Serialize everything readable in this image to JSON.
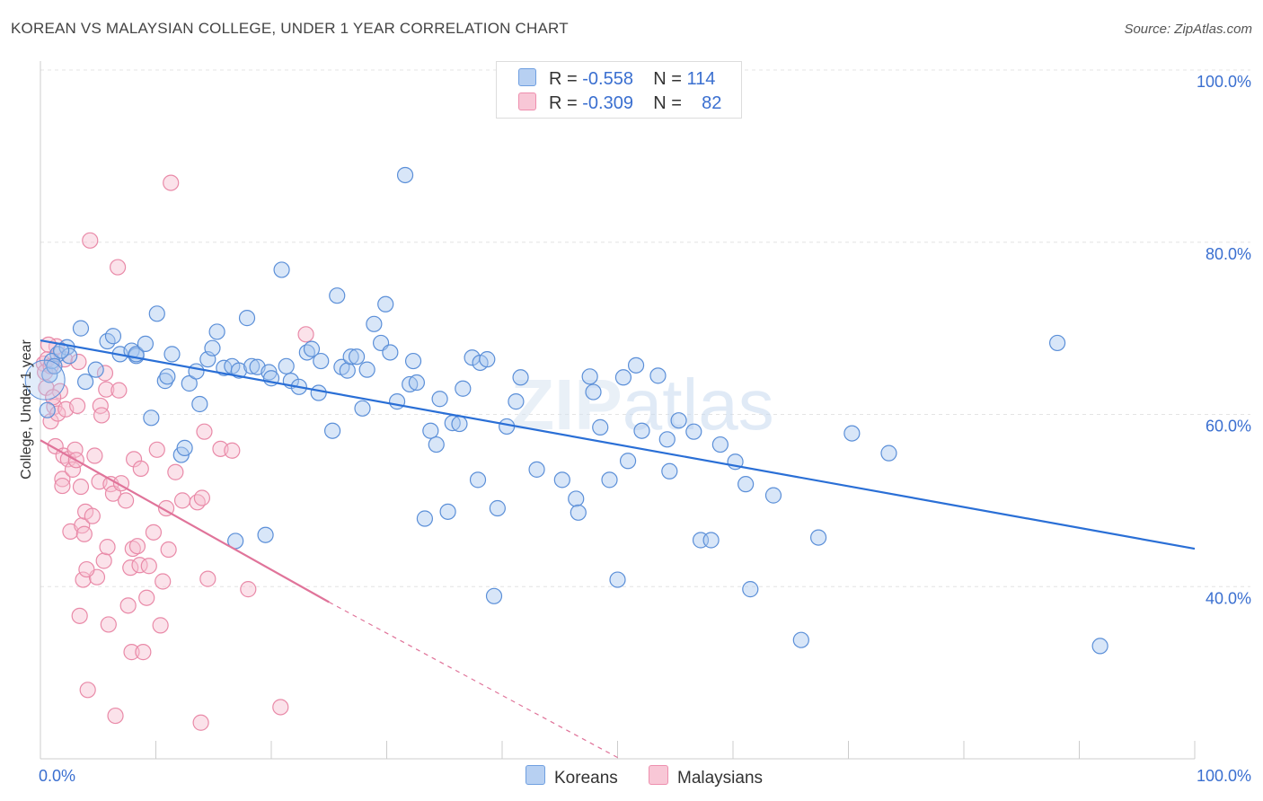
{
  "title": "KOREAN VS MALAYSIAN COLLEGE, UNDER 1 YEAR CORRELATION CHART",
  "source": "Source: ZipAtlas.com",
  "watermark": "ZIPatlas",
  "legend": {
    "koreans": {
      "r_label": "R =",
      "r_value": "-0.558",
      "n_label": "N =",
      "n_value": "114"
    },
    "malaysians": {
      "r_label": "R =",
      "r_value": "-0.309",
      "n_label": "N =",
      "n_value": "82"
    }
  },
  "bottom_legend": {
    "koreans": "Koreans",
    "malaysians": "Malaysians"
  },
  "colors": {
    "blue_fill": "#a9c8f0",
    "blue_stroke": "#5b8fd8",
    "blue_line": "#2a6fd6",
    "pink_fill": "#f6bed0",
    "pink_stroke": "#e98aa8",
    "pink_line": "#e0749a",
    "axis_label": "#3a6fd0"
  },
  "chart_data": {
    "type": "scatter",
    "title": "KOREAN VS MALAYSIAN COLLEGE, UNDER 1 YEAR CORRELATION CHART",
    "xlabel": "",
    "ylabel": "College, Under 1 year",
    "xlim": [
      0,
      100
    ],
    "ylim": [
      20,
      100
    ],
    "x_tick_labels": {
      "left": "0.0%",
      "right": "100.0%"
    },
    "y_ticks": [
      {
        "value": 100,
        "label": "100.0%"
      },
      {
        "value": 80,
        "label": "80.0%"
      },
      {
        "value": 60,
        "label": "60.0%"
      },
      {
        "value": 40,
        "label": "40.0%"
      }
    ],
    "series": [
      {
        "name": "Koreans",
        "r": -0.558,
        "n": 114,
        "trend": {
          "x0": 0,
          "y0": 68.6,
          "x1": 100,
          "y1": 44.4
        },
        "points": [
          [
            1.5,
            67.0
          ],
          [
            2.3,
            67.8
          ],
          [
            2.5,
            66.8
          ],
          [
            3.5,
            70.0
          ],
          [
            3.9,
            63.8
          ],
          [
            4.8,
            65.2
          ],
          [
            5.8,
            68.5
          ],
          [
            6.3,
            69.1
          ],
          [
            6.9,
            67.0
          ],
          [
            7.9,
            67.4
          ],
          [
            8.3,
            66.8
          ],
          [
            8.3,
            67.0
          ],
          [
            9.1,
            68.2
          ],
          [
            9.6,
            59.6
          ],
          [
            10.1,
            71.7
          ],
          [
            10.8,
            63.9
          ],
          [
            11.0,
            64.4
          ],
          [
            11.4,
            67.0
          ],
          [
            12.2,
            55.3
          ],
          [
            12.5,
            56.1
          ],
          [
            12.9,
            63.6
          ],
          [
            13.5,
            65.0
          ],
          [
            13.8,
            61.2
          ],
          [
            14.5,
            66.4
          ],
          [
            14.9,
            67.7
          ],
          [
            15.3,
            69.6
          ],
          [
            15.9,
            65.4
          ],
          [
            16.6,
            65.6
          ],
          [
            16.9,
            45.3
          ],
          [
            17.2,
            65.1
          ],
          [
            17.9,
            71.2
          ],
          [
            18.3,
            65.6
          ],
          [
            18.8,
            65.5
          ],
          [
            19.5,
            46.0
          ],
          [
            19.8,
            64.9
          ],
          [
            20.0,
            64.2
          ],
          [
            20.9,
            76.8
          ],
          [
            21.3,
            65.6
          ],
          [
            21.7,
            63.9
          ],
          [
            22.4,
            63.2
          ],
          [
            23.1,
            67.2
          ],
          [
            23.5,
            67.6
          ],
          [
            24.1,
            62.5
          ],
          [
            24.3,
            66.2
          ],
          [
            25.3,
            58.1
          ],
          [
            25.7,
            73.8
          ],
          [
            26.1,
            65.5
          ],
          [
            26.6,
            65.1
          ],
          [
            26.9,
            66.7
          ],
          [
            27.4,
            66.7
          ],
          [
            27.9,
            60.7
          ],
          [
            28.3,
            65.2
          ],
          [
            28.9,
            70.5
          ],
          [
            29.5,
            68.3
          ],
          [
            29.9,
            72.8
          ],
          [
            30.3,
            67.2
          ],
          [
            30.9,
            61.5
          ],
          [
            31.6,
            87.8
          ],
          [
            32.0,
            63.5
          ],
          [
            32.3,
            66.2
          ],
          [
            32.6,
            63.7
          ],
          [
            33.3,
            47.9
          ],
          [
            33.8,
            58.1
          ],
          [
            34.3,
            56.5
          ],
          [
            34.6,
            61.8
          ],
          [
            35.3,
            48.7
          ],
          [
            35.7,
            59.0
          ],
          [
            36.3,
            58.9
          ],
          [
            36.6,
            63.0
          ],
          [
            37.4,
            66.6
          ],
          [
            38.1,
            66.0
          ],
          [
            37.9,
            52.4
          ],
          [
            38.7,
            66.4
          ],
          [
            39.3,
            38.9
          ],
          [
            39.6,
            49.1
          ],
          [
            40.4,
            58.6
          ],
          [
            41.2,
            61.5
          ],
          [
            41.6,
            64.3
          ],
          [
            43.0,
            53.6
          ],
          [
            45.2,
            52.4
          ],
          [
            46.4,
            50.2
          ],
          [
            46.6,
            48.6
          ],
          [
            47.6,
            64.4
          ],
          [
            47.9,
            62.6
          ],
          [
            48.5,
            58.5
          ],
          [
            49.3,
            52.4
          ],
          [
            50.0,
            40.8
          ],
          [
            50.5,
            64.3
          ],
          [
            50.9,
            54.6
          ],
          [
            51.6,
            65.7
          ],
          [
            52.1,
            58.1
          ],
          [
            53.5,
            64.5
          ],
          [
            54.3,
            57.1
          ],
          [
            54.5,
            53.4
          ],
          [
            55.3,
            59.3
          ],
          [
            56.6,
            58.0
          ],
          [
            57.2,
            45.4
          ],
          [
            58.1,
            45.4
          ],
          [
            58.9,
            56.5
          ],
          [
            60.2,
            54.5
          ],
          [
            61.1,
            51.9
          ],
          [
            61.5,
            39.7
          ],
          [
            63.5,
            50.6
          ],
          [
            65.9,
            33.8
          ],
          [
            67.4,
            45.7
          ],
          [
            70.3,
            57.8
          ],
          [
            73.5,
            55.5
          ],
          [
            88.1,
            68.3
          ],
          [
            91.8,
            33.1
          ],
          [
            0.6,
            60.5
          ],
          [
            0.8,
            64.6
          ],
          [
            1.0,
            66.2
          ],
          [
            1.2,
            65.6
          ],
          [
            1.8,
            67.4
          ]
        ]
      },
      {
        "name": "Malaysians",
        "r": -0.309,
        "n": 82,
        "trend": {
          "x0": 0,
          "y0": 57.0,
          "x1": 25.0,
          "y1": 38.2
        },
        "trend_dashed": {
          "x0": 25.0,
          "y0": 38.2,
          "x1": 50.2,
          "y1": 20.0
        },
        "points": [
          [
            0.3,
            65.9
          ],
          [
            0.4,
            64.9
          ],
          [
            0.6,
            66.4
          ],
          [
            0.9,
            65.6
          ],
          [
            0.9,
            59.2
          ],
          [
            1.2,
            60.9
          ],
          [
            1.3,
            56.3
          ],
          [
            1.4,
            67.9
          ],
          [
            1.5,
            60.1
          ],
          [
            1.7,
            62.7
          ],
          [
            1.9,
            52.5
          ],
          [
            1.9,
            51.7
          ],
          [
            2.0,
            55.2
          ],
          [
            2.2,
            60.6
          ],
          [
            2.4,
            54.8
          ],
          [
            2.6,
            46.4
          ],
          [
            2.8,
            53.6
          ],
          [
            3.0,
            55.9
          ],
          [
            3.1,
            54.7
          ],
          [
            3.2,
            61.0
          ],
          [
            3.4,
            36.6
          ],
          [
            3.5,
            51.6
          ],
          [
            3.6,
            47.1
          ],
          [
            3.7,
            40.8
          ],
          [
            3.8,
            46.1
          ],
          [
            3.9,
            48.7
          ],
          [
            4.1,
            28.0
          ],
          [
            4.3,
            80.2
          ],
          [
            4.5,
            48.2
          ],
          [
            4.7,
            55.2
          ],
          [
            4.9,
            41.1
          ],
          [
            5.1,
            52.2
          ],
          [
            5.2,
            61.0
          ],
          [
            5.3,
            59.9
          ],
          [
            5.5,
            43.0
          ],
          [
            5.6,
            64.8
          ],
          [
            5.7,
            62.9
          ],
          [
            5.8,
            44.6
          ],
          [
            5.9,
            35.6
          ],
          [
            6.1,
            51.9
          ],
          [
            6.3,
            50.8
          ],
          [
            6.5,
            25.0
          ],
          [
            6.7,
            77.1
          ],
          [
            6.8,
            62.8
          ],
          [
            7.0,
            52.0
          ],
          [
            7.4,
            50.0
          ],
          [
            7.6,
            37.8
          ],
          [
            7.8,
            42.2
          ],
          [
            7.9,
            32.4
          ],
          [
            8.0,
            44.4
          ],
          [
            8.1,
            54.8
          ],
          [
            8.4,
            44.7
          ],
          [
            8.6,
            42.5
          ],
          [
            8.7,
            53.7
          ],
          [
            8.9,
            32.4
          ],
          [
            9.2,
            38.7
          ],
          [
            9.4,
            42.4
          ],
          [
            9.8,
            46.3
          ],
          [
            10.1,
            55.9
          ],
          [
            10.4,
            35.5
          ],
          [
            10.6,
            40.6
          ],
          [
            10.9,
            49.1
          ],
          [
            11.1,
            44.3
          ],
          [
            11.3,
            86.9
          ],
          [
            11.7,
            53.3
          ],
          [
            12.3,
            50.0
          ],
          [
            13.6,
            49.8
          ],
          [
            13.9,
            24.2
          ],
          [
            14.0,
            50.3
          ],
          [
            14.2,
            58.0
          ],
          [
            14.5,
            40.9
          ],
          [
            15.6,
            56.0
          ],
          [
            16.6,
            55.8
          ],
          [
            18.0,
            39.7
          ],
          [
            20.8,
            26.0
          ],
          [
            23.0,
            69.3
          ],
          [
            0.5,
            63.1
          ],
          [
            0.7,
            68.1
          ],
          [
            1.1,
            62.0
          ],
          [
            2.1,
            66.4
          ],
          [
            3.3,
            66.1
          ],
          [
            4.0,
            42.0
          ]
        ]
      }
    ]
  }
}
